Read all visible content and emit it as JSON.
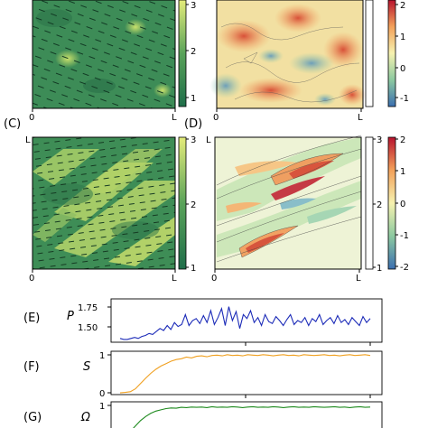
{
  "panels": {
    "A": {
      "colorbar": {
        "ticks": [
          "3",
          "2",
          "1"
        ]
      },
      "x_ticks": [
        "0",
        "L"
      ]
    },
    "B": {
      "colorbar": {
        "ticks": [
          "2",
          "1",
          "0",
          "-1"
        ]
      },
      "x_ticks": [
        "0",
        "L"
      ]
    },
    "C": {
      "label": "(C)",
      "y_tick_top": "L",
      "colorbar": {
        "ticks": [
          "3",
          "2",
          "1"
        ]
      },
      "x_ticks": [
        "0",
        "L"
      ]
    },
    "D": {
      "label": "(D)",
      "y_tick_top": "L",
      "colorbar_left": {
        "ticks": [
          "3",
          "2",
          "1"
        ]
      },
      "colorbar_right": {
        "ticks": [
          "2",
          "1",
          "0",
          "-1",
          "-2"
        ]
      },
      "x_ticks": [
        "0",
        "L"
      ]
    },
    "E": {
      "label": "(E)",
      "ylabel": "P",
      "y_ticks": [
        "1.75",
        "1.50"
      ]
    },
    "F": {
      "label": "(F)",
      "ylabel": "S",
      "y_ticks": [
        "1",
        "0"
      ]
    },
    "G": {
      "label": "(G)",
      "ylabel": "Ω",
      "y_ticks": [
        "1"
      ]
    }
  },
  "colors": {
    "viridis_dark": "#2e7d4f",
    "viridis_mid": "#5da35a",
    "viridis_light": "#d7e86a",
    "series_E": "#1c2bb8",
    "series_F": "#f0a020",
    "series_G": "#1e8a1e"
  },
  "chart_data": [
    {
      "type": "line",
      "panel": "E",
      "ylabel": "P",
      "ylim": [
        1.4,
        1.8
      ],
      "y_ticks": [
        1.5,
        1.75
      ],
      "values": [
        1.42,
        1.41,
        1.41,
        1.42,
        1.43,
        1.42,
        1.44,
        1.45,
        1.47,
        1.46,
        1.49,
        1.52,
        1.5,
        1.55,
        1.51,
        1.58,
        1.54,
        1.56,
        1.66,
        1.55,
        1.6,
        1.62,
        1.57,
        1.65,
        1.58,
        1.7,
        1.56,
        1.63,
        1.72,
        1.55,
        1.74,
        1.6,
        1.69,
        1.52,
        1.66,
        1.62,
        1.7,
        1.58,
        1.63,
        1.55,
        1.66,
        1.59,
        1.57,
        1.64,
        1.6,
        1.55,
        1.61,
        1.66,
        1.56,
        1.6,
        1.58,
        1.63,
        1.55,
        1.62,
        1.59,
        1.66,
        1.56,
        1.6,
        1.63,
        1.57,
        1.65,
        1.58,
        1.61,
        1.56,
        1.63,
        1.59,
        1.55,
        1.64,
        1.58,
        1.62
      ]
    },
    {
      "type": "line",
      "panel": "F",
      "ylabel": "S",
      "ylim": [
        0,
        1
      ],
      "values": [
        0.02,
        0.03,
        0.05,
        0.12,
        0.25,
        0.38,
        0.5,
        0.6,
        0.68,
        0.74,
        0.8,
        0.84,
        0.86,
        0.9,
        0.88,
        0.92,
        0.93,
        0.91,
        0.94,
        0.95,
        0.93,
        0.96,
        0.94,
        0.95,
        0.93,
        0.96,
        0.95,
        0.94,
        0.96,
        0.95,
        0.93,
        0.95,
        0.96,
        0.94,
        0.95,
        0.93,
        0.96,
        0.95,
        0.94,
        0.95,
        0.96,
        0.94,
        0.95,
        0.93,
        0.95,
        0.96,
        0.94,
        0.95,
        0.96,
        0.94
      ]
    },
    {
      "type": "line",
      "panel": "G",
      "ylabel": "Ω",
      "ylim": [
        0,
        1
      ],
      "values": [
        0.0,
        0.05,
        0.18,
        0.35,
        0.52,
        0.65,
        0.75,
        0.82,
        0.86,
        0.9,
        0.92,
        0.91,
        0.94,
        0.93,
        0.95,
        0.94,
        0.95,
        0.93,
        0.96,
        0.94,
        0.95,
        0.94,
        0.96,
        0.95,
        0.93,
        0.95,
        0.96,
        0.94,
        0.95,
        0.94,
        0.96,
        0.95,
        0.93,
        0.95,
        0.96,
        0.94,
        0.95,
        0.94,
        0.96,
        0.95,
        0.94,
        0.95,
        0.96,
        0.94,
        0.95,
        0.93,
        0.95,
        0.96,
        0.94,
        0.95
      ]
    }
  ]
}
